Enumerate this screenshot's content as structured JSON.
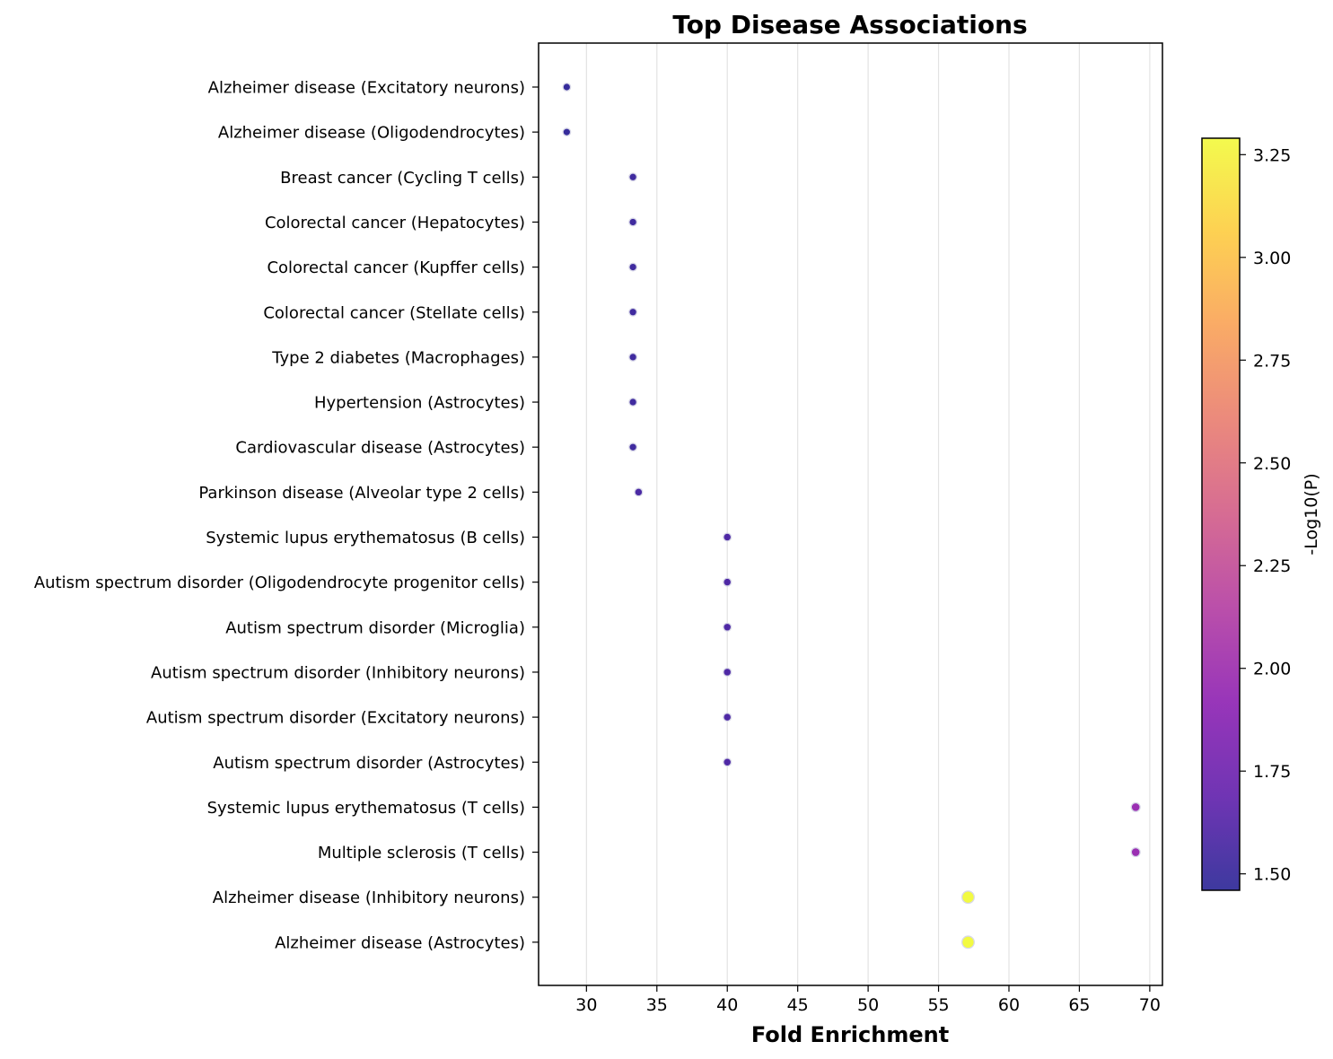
{
  "chart_data": {
    "type": "scatter",
    "title": "Top Disease Associations",
    "xlabel": "Fold Enrichment",
    "ylabel": "",
    "xlim": [
      26.6,
      70.9
    ],
    "xticks": [
      30,
      35,
      40,
      45,
      50,
      55,
      60,
      65,
      70
    ],
    "grid": "vertical",
    "colormap": "plasma",
    "colorbar": {
      "label": "-Log10(P)",
      "range": [
        1.46,
        3.29
      ],
      "ticks": [
        "1.50",
        "1.75",
        "2.00",
        "2.25",
        "2.50",
        "2.75",
        "3.00",
        "3.25"
      ],
      "tick_values": [
        1.5,
        1.75,
        2.0,
        2.25,
        2.5,
        2.75,
        3.0,
        3.25
      ]
    },
    "categories": [
      "Alzheimer disease (Excitatory neurons)",
      "Alzheimer disease (Oligodendrocytes)",
      "Breast cancer (Cycling T cells)",
      "Colorectal cancer (Hepatocytes)",
      "Colorectal cancer (Kupffer cells)",
      "Colorectal cancer (Stellate cells)",
      "Type 2 diabetes (Macrophages)",
      "Hypertension (Astrocytes)",
      "Cardiovascular disease (Astrocytes)",
      "Parkinson disease (Alveolar type 2 cells)",
      "Systemic lupus erythematosus (B cells)",
      "Autism spectrum disorder (Oligodendrocyte progenitor cells)",
      "Autism spectrum disorder (Microglia)",
      "Autism spectrum disorder (Inhibitory neurons)",
      "Autism spectrum disorder (Excitatory neurons)",
      "Autism spectrum disorder (Astrocytes)",
      "Systemic lupus erythematosus (T cells)",
      "Multiple sclerosis (T cells)",
      "Alzheimer disease (Inhibitory neurons)",
      "Alzheimer disease (Astrocytes)"
    ],
    "x": [
      28.6,
      28.6,
      33.3,
      33.3,
      33.3,
      33.3,
      33.3,
      33.3,
      33.3,
      33.7,
      40.0,
      40.0,
      40.0,
      40.0,
      40.0,
      40.0,
      69.0,
      69.0,
      57.1,
      57.1
    ],
    "neg_log10_p": [
      1.48,
      1.48,
      1.52,
      1.52,
      1.52,
      1.52,
      1.52,
      1.52,
      1.52,
      1.57,
      1.59,
      1.59,
      1.59,
      1.59,
      1.59,
      1.59,
      1.97,
      1.97,
      3.29,
      3.29
    ]
  }
}
